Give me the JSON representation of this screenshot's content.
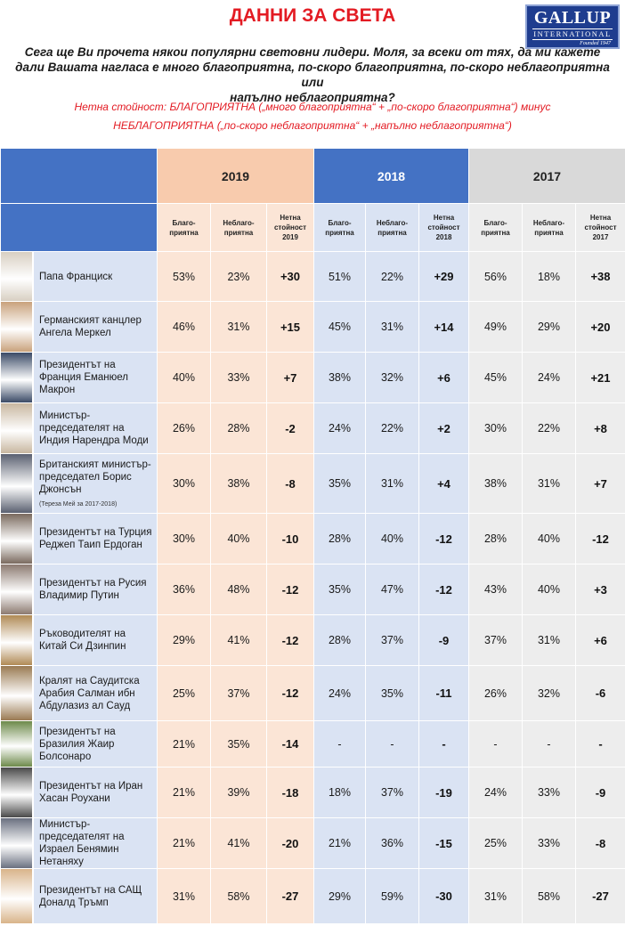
{
  "header": {
    "title": "ДАННИ ЗА СВЕТА",
    "logo": {
      "name": "GALLUP",
      "sub": "INTERNATIONAL",
      "founded": "Founded 1947"
    },
    "question_lines": [
      "Сега ще Ви прочета някои популярни световни лидери. Моля, за всеки от тях, да ми кажете",
      "дали Вашата нагласа е много благоприятна, по-скоро благоприятна, по-скоро неблагоприятна или",
      "напълно неблагоприятна?"
    ],
    "net_definition_lines": [
      "Нетна стойност:  БЛАГОПРИЯТНА  („много благоприятна“  + „по-скоро  благоприятна“)  минус",
      "НЕБЛАГОПРИЯТНА  („по-скоро  неблагоприятна“  +  „напълно  неблагоприятна“)"
    ]
  },
  "years": [
    "2019",
    "2018",
    "2017"
  ],
  "subheaders": {
    "2019": [
      "Благо-\nприятна",
      "Неблаго-\nприятна",
      "Нетна\nстойност\n2019"
    ],
    "2018": [
      "Благо-\nприятна",
      "Неблаго-\nприятна",
      "Нетна\nстойност\n2018"
    ],
    "2017": [
      "Благо-\nприятна",
      "Неблаго-\nприятна",
      "Нетна\nстойност\n2017"
    ]
  },
  "colors": {
    "title_red": "#e31b23",
    "header_blue": "#4472c4",
    "col2019_header": "#f8cbad",
    "col2019_cells": "#fbe5d6",
    "col2018_cells": "#dae3f3",
    "col2017_header": "#d9d9d9",
    "col2017_cells": "#ededed"
  },
  "rows": [
    {
      "leader": "Папа Франциск",
      "note": "",
      "photo_tone": "#d8cfc2",
      "values": [
        "53%",
        "23%",
        "+30",
        "51%",
        "22%",
        "+29",
        "56%",
        "18%",
        "+38"
      ]
    },
    {
      "leader": "Германският канцлер Ангела Меркел",
      "note": "",
      "photo_tone": "#c9a27c",
      "values": [
        "46%",
        "31%",
        "+15",
        "45%",
        "31%",
        "+14",
        "49%",
        "29%",
        "+20"
      ]
    },
    {
      "leader": "Президентът на Франция Еманюел Макрон",
      "note": "",
      "photo_tone": "#3a4a66",
      "values": [
        "40%",
        "33%",
        "+7",
        "38%",
        "32%",
        "+6",
        "45%",
        "24%",
        "+21"
      ]
    },
    {
      "leader": "Министър-председателят на Индия Нарендра Моди",
      "note": "",
      "photo_tone": "#c8b7a0",
      "values": [
        "26%",
        "28%",
        "-2",
        "24%",
        "22%",
        "+2",
        "30%",
        "22%",
        "+8"
      ]
    },
    {
      "leader": "Британският министър-председател Борис Джонсън",
      "note": "(Тереза Мей за 2017-2018)",
      "photo_tone": "#5a6070",
      "values": [
        "30%",
        "38%",
        "-8",
        "35%",
        "31%",
        "+4",
        "38%",
        "31%",
        "+7"
      ]
    },
    {
      "leader": "Президентът на Турция Реджеп Таип Ердоган",
      "note": "",
      "photo_tone": "#7a6a5e",
      "values": [
        "30%",
        "40%",
        "-10",
        "28%",
        "40%",
        "-12",
        "28%",
        "40%",
        "-12"
      ]
    },
    {
      "leader": "Президентът на Русия Владимир Путин",
      "note": "",
      "photo_tone": "#8c7a70",
      "values": [
        "36%",
        "48%",
        "-12",
        "35%",
        "47%",
        "-12",
        "43%",
        "40%",
        "+3"
      ]
    },
    {
      "leader": "Ръководителят на Китай Си Дзинпин",
      "note": "",
      "photo_tone": "#b08a55",
      "values": [
        "29%",
        "41%",
        "-12",
        "28%",
        "37%",
        "-9",
        "37%",
        "31%",
        "+6"
      ]
    },
    {
      "leader": "Кралят на Саудитска Арабия Салман ибн Абдулазиз ал Сауд",
      "note": "",
      "photo_tone": "#9a7a52",
      "values": [
        "25%",
        "37%",
        "-12",
        "24%",
        "35%",
        "-11",
        "26%",
        "32%",
        "-6"
      ]
    },
    {
      "leader": "Президентът на Бразилия Жаир Болсонаро",
      "note": "",
      "photo_tone": "#6d8a4a",
      "values": [
        "21%",
        "35%",
        "-14",
        "-",
        "-",
        "-",
        "-",
        "-",
        "-"
      ]
    },
    {
      "leader": "Президентът на Иран Хасан Роухани",
      "note": "",
      "photo_tone": "#4a4a4a",
      "values": [
        "21%",
        "39%",
        "-18",
        "18%",
        "37%",
        "-19",
        "24%",
        "33%",
        "-9"
      ]
    },
    {
      "leader": "Министър-председателят на Израел Бенямин Нетаняху",
      "note": "",
      "photo_tone": "#6a7080",
      "values": [
        "21%",
        "41%",
        "-20",
        "21%",
        "36%",
        "-15",
        "25%",
        "33%",
        "-8"
      ]
    },
    {
      "leader": "Президентът на САЩ Доналд Тръмп",
      "note": "",
      "photo_tone": "#d9b48a",
      "values": [
        "31%",
        "58%",
        "-27",
        "29%",
        "59%",
        "-30",
        "31%",
        "58%",
        "-27"
      ]
    }
  ]
}
